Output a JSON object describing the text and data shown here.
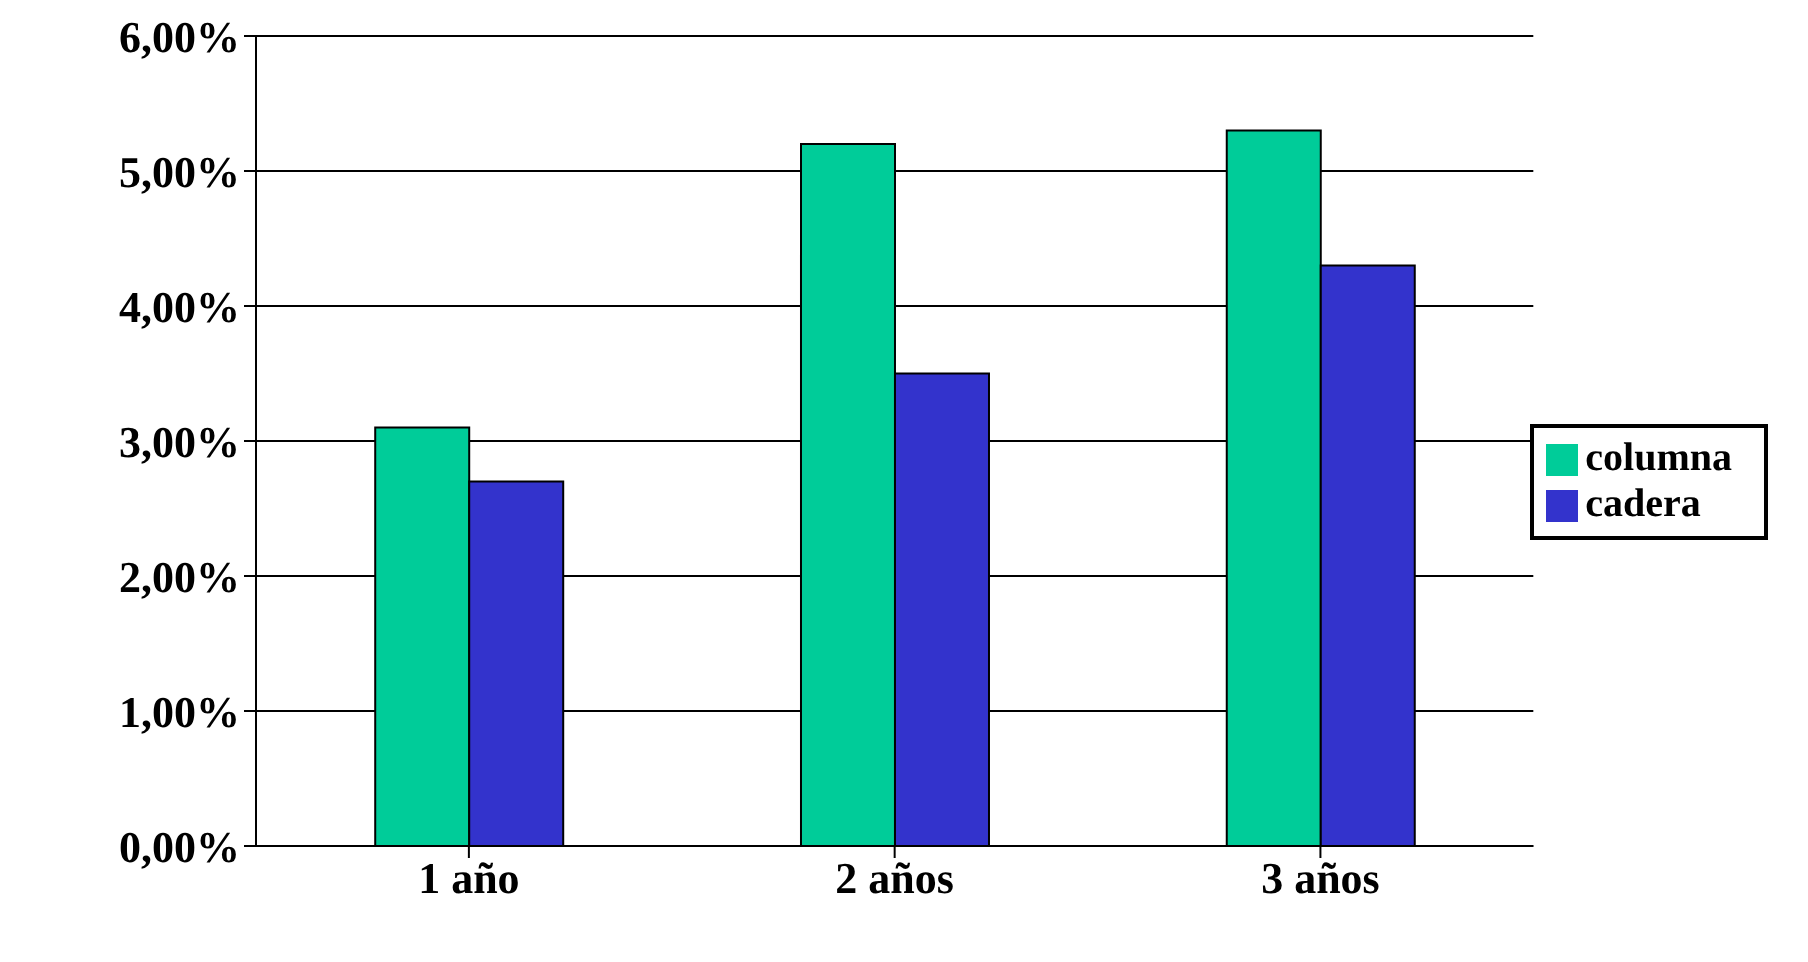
{
  "chart_data": {
    "type": "bar",
    "categories": [
      "1 año",
      "2 años",
      "3 años"
    ],
    "series": [
      {
        "name": "columna",
        "color": "#00cc99",
        "values": [
          3.1,
          5.2,
          5.3
        ]
      },
      {
        "name": "cadera",
        "color": "#3333cc",
        "values": [
          2.7,
          3.5,
          4.3
        ]
      }
    ],
    "ylim": [
      0,
      6
    ],
    "yticks": [
      {
        "value": 0,
        "label": "0,00%"
      },
      {
        "value": 1,
        "label": "1,00%"
      },
      {
        "value": 2,
        "label": "2,00%"
      },
      {
        "value": 3,
        "label": "3,00%"
      },
      {
        "value": 4,
        "label": "4,00%"
      },
      {
        "value": 5,
        "label": "5,00%"
      },
      {
        "value": 6,
        "label": "6,00%"
      }
    ],
    "grid": "y",
    "legend": "right"
  }
}
